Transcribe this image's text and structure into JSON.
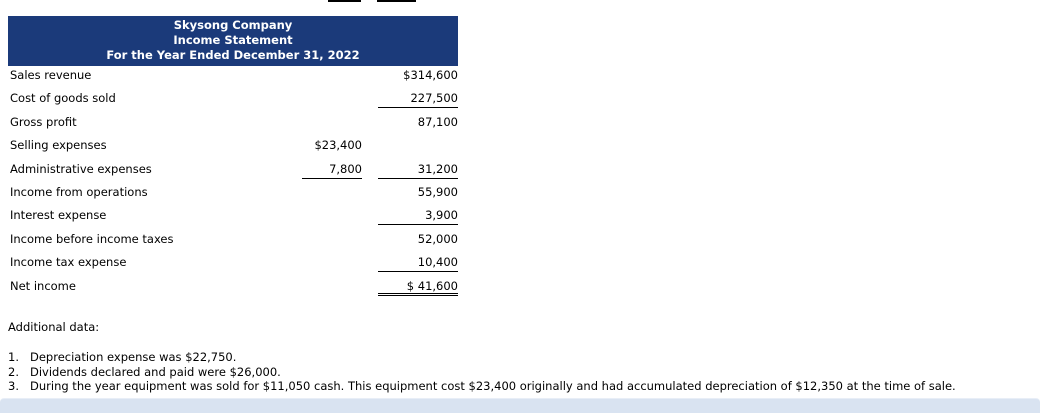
{
  "header": {
    "company": "Skysong Company",
    "statement_title": "Income Statement",
    "period": "For the Year Ended December 31, 2022"
  },
  "income_statement": {
    "rows": [
      {
        "label": "Sales revenue",
        "mid": "",
        "right": "$314,600"
      },
      {
        "label": "Cost of goods sold",
        "mid": "",
        "right": "227,500",
        "right_underline": true
      },
      {
        "label": "Gross profit",
        "mid": "",
        "right": "87,100"
      },
      {
        "label": "Selling expenses",
        "mid": "$23,400",
        "right": ""
      },
      {
        "label": "Administrative expenses",
        "mid": "7,800",
        "mid_underline": true,
        "right": "31,200",
        "right_underline": true
      },
      {
        "label": "Income from operations",
        "mid": "",
        "right": "55,900"
      },
      {
        "label": "Interest expense",
        "mid": "",
        "right": "3,900",
        "right_underline": true
      },
      {
        "label": "Income before income taxes",
        "mid": "",
        "right": "52,000"
      },
      {
        "label": "Income tax expense",
        "mid": "",
        "right": "10,400",
        "right_underline": true
      },
      {
        "label": "Net income",
        "mid": "",
        "right": "$ 41,600",
        "right_double_underline": true
      }
    ]
  },
  "additional_data": {
    "title": "Additional data:",
    "notes": [
      {
        "num": "1.",
        "text": "Depreciation expense was $22,750."
      },
      {
        "num": "2.",
        "text": "Dividends declared and paid were $26,000."
      },
      {
        "num": "3.",
        "text": "During the year equipment was sold for $11,050 cash. This equipment cost $23,400 originally and had accumulated depreciation of $12,350 at the time of sale."
      }
    ]
  },
  "colors": {
    "header_bg": "#1b3a7a",
    "header_text": "#ffffff",
    "footer_bar_bg": "#d9e3f1"
  }
}
